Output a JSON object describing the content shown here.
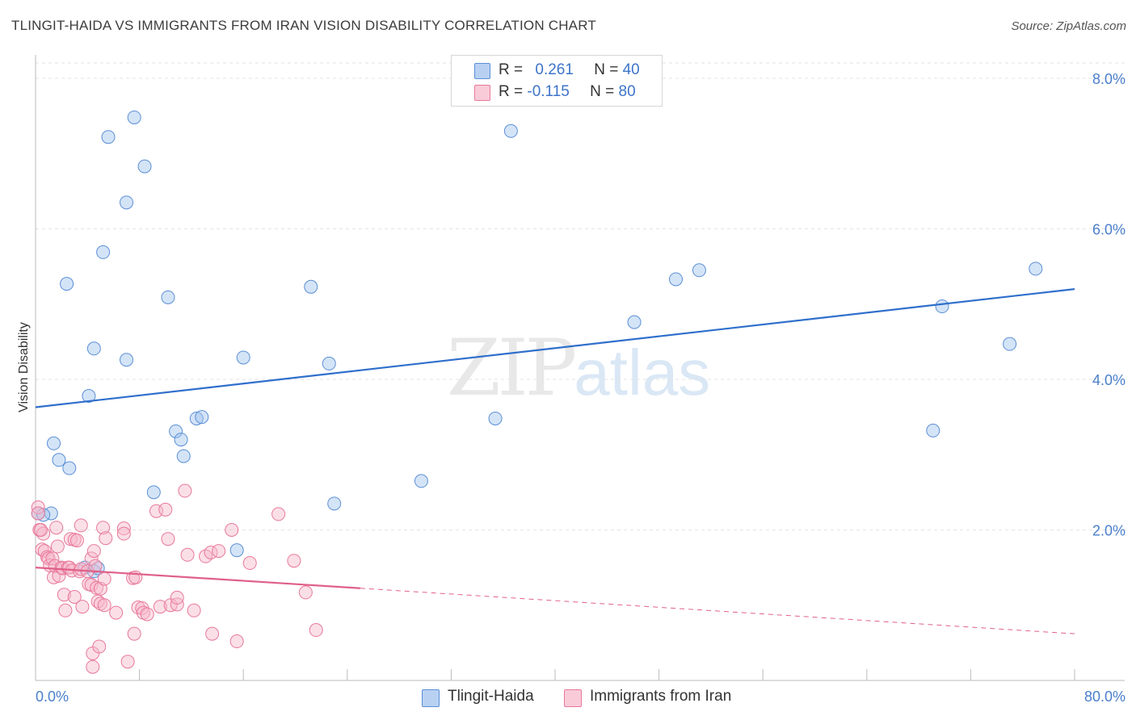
{
  "title": "TLINGIT-HAIDA VS IMMIGRANTS FROM IRAN VISION DISABILITY CORRELATION CHART",
  "source": "Source: ZipAtlas.com",
  "watermark": {
    "zip": "ZIP",
    "atlas": "atlas"
  },
  "legend_top": {
    "rows": [
      {
        "r_label": "R = ",
        "r_value": "0.261",
        "n_label": "N = ",
        "n_value": "40",
        "color": "#9fc2ee",
        "border": "#5b8fd6"
      },
      {
        "r_label": "R = ",
        "r_value": "-0.115",
        "n_label": "N = ",
        "n_value": "80",
        "color": "#f7b8ca",
        "border": "#e8799b"
      }
    ]
  },
  "legend_bottom": [
    {
      "label": "Tlingit-Haida",
      "color": "#b8d1f3",
      "border": "#5b8fd6"
    },
    {
      "label": "Immigrants from Iran",
      "color": "#f9cbd8",
      "border": "#e8799b"
    }
  ],
  "chart_data": {
    "type": "scatter",
    "title": "TLINGIT-HAIDA VS IMMIGRANTS FROM IRAN VISION DISABILITY CORRELATION CHART",
    "xlabel": "",
    "ylabel": "Vision Disability",
    "xlim": [
      0,
      80
    ],
    "ylim": [
      0,
      8.0
    ],
    "x_tick_labels": [
      {
        "value": 0,
        "label": "0.0%"
      },
      {
        "value": 80,
        "label": "80.0%"
      }
    ],
    "y_tick_labels": [
      {
        "value": 2.0,
        "label": "2.0%"
      },
      {
        "value": 4.0,
        "label": "4.0%"
      },
      {
        "value": 6.0,
        "label": "6.0%"
      },
      {
        "value": 8.0,
        "label": "8.0%"
      }
    ],
    "series": [
      {
        "name": "Tlingit-Haida",
        "color": "#5b8fd6",
        "fill": "rgba(160,195,238,0.45)",
        "trend": {
          "x0": 0,
          "y0": 3.63,
          "x1": 80,
          "y1": 5.2,
          "solid_until": 80,
          "color": "#2f6fcc"
        },
        "points": [
          [
            0.2,
            2.22
          ],
          [
            1.2,
            2.22
          ],
          [
            1.4,
            3.15
          ],
          [
            1.8,
            2.93
          ],
          [
            2.4,
            5.27
          ],
          [
            2.6,
            2.82
          ],
          [
            4.1,
            3.78
          ],
          [
            4.5,
            4.41
          ],
          [
            5.2,
            5.69
          ],
          [
            5.6,
            7.22
          ],
          [
            7.0,
            6.35
          ],
          [
            7.0,
            4.26
          ],
          [
            7.6,
            7.48
          ],
          [
            8.4,
            6.83
          ],
          [
            9.1,
            2.5
          ],
          [
            10.2,
            5.09
          ],
          [
            10.8,
            3.31
          ],
          [
            11.2,
            3.2
          ],
          [
            11.4,
            2.98
          ],
          [
            12.4,
            3.48
          ],
          [
            12.8,
            3.5
          ],
          [
            15.5,
            1.73
          ],
          [
            16.0,
            4.29
          ],
          [
            21.2,
            5.23
          ],
          [
            23.0,
            2.35
          ],
          [
            22.6,
            4.21
          ],
          [
            29.7,
            2.65
          ],
          [
            35.4,
            3.48
          ],
          [
            36.6,
            7.3
          ],
          [
            46.1,
            4.76
          ],
          [
            49.3,
            5.33
          ],
          [
            51.1,
            5.45
          ],
          [
            69.1,
            3.32
          ],
          [
            69.8,
            4.97
          ],
          [
            75.0,
            4.47
          ],
          [
            77.0,
            5.47
          ],
          [
            3.8,
            1.5
          ],
          [
            4.5,
            1.45
          ],
          [
            4.8,
            1.49
          ],
          [
            0.6,
            2.2
          ]
        ]
      },
      {
        "name": "Immigrants from Iran",
        "color": "#e8799b",
        "fill": "rgba(247,184,202,0.45)",
        "trend": {
          "x0": 0,
          "y0": 1.5,
          "x1": 80,
          "y1": 0.62,
          "solid_until": 25,
          "color": "#e0608a"
        },
        "points": [
          [
            0.2,
            2.3
          ],
          [
            0.3,
            2.0
          ],
          [
            0.5,
            1.74
          ],
          [
            0.6,
            1.95
          ],
          [
            0.7,
            1.72
          ],
          [
            0.9,
            1.64
          ],
          [
            1.0,
            1.62
          ],
          [
            1.1,
            1.53
          ],
          [
            1.3,
            1.62
          ],
          [
            1.4,
            1.37
          ],
          [
            1.5,
            1.52
          ],
          [
            1.6,
            2.03
          ],
          [
            1.7,
            1.78
          ],
          [
            1.8,
            1.39
          ],
          [
            2.0,
            1.5
          ],
          [
            2.1,
            1.49
          ],
          [
            2.2,
            1.14
          ],
          [
            2.3,
            0.93
          ],
          [
            2.5,
            1.5
          ],
          [
            2.6,
            1.5
          ],
          [
            2.7,
            1.88
          ],
          [
            2.8,
            1.46
          ],
          [
            3.0,
            1.11
          ],
          [
            3.0,
            1.87
          ],
          [
            3.2,
            1.86
          ],
          [
            3.4,
            1.45
          ],
          [
            3.5,
            1.48
          ],
          [
            3.5,
            2.06
          ],
          [
            3.6,
            0.98
          ],
          [
            4.0,
            1.45
          ],
          [
            4.1,
            1.28
          ],
          [
            4.3,
            1.62
          ],
          [
            4.3,
            1.27
          ],
          [
            4.4,
            0.36
          ],
          [
            4.4,
            0.18
          ],
          [
            4.5,
            1.72
          ],
          [
            4.6,
            1.52
          ],
          [
            4.7,
            1.23
          ],
          [
            4.8,
            1.05
          ],
          [
            4.9,
            0.45
          ],
          [
            5.0,
            1.22
          ],
          [
            5.0,
            1.02
          ],
          [
            5.2,
            2.03
          ],
          [
            5.3,
            1.35
          ],
          [
            5.3,
            1.0
          ],
          [
            5.4,
            1.89
          ],
          [
            6.2,
            0.9
          ],
          [
            6.8,
            2.02
          ],
          [
            6.8,
            1.95
          ],
          [
            7.1,
            0.25
          ],
          [
            7.5,
            1.36
          ],
          [
            7.7,
            1.37
          ],
          [
            7.6,
            0.62
          ],
          [
            7.9,
            0.97
          ],
          [
            8.2,
            0.96
          ],
          [
            8.3,
            0.9
          ],
          [
            8.6,
            0.88
          ],
          [
            9.3,
            2.25
          ],
          [
            9.6,
            0.98
          ],
          [
            10.0,
            2.27
          ],
          [
            10.2,
            1.88
          ],
          [
            10.4,
            1.0
          ],
          [
            10.9,
            1.01
          ],
          [
            10.9,
            1.1
          ],
          [
            11.5,
            2.52
          ],
          [
            11.7,
            1.67
          ],
          [
            12.2,
            0.93
          ],
          [
            13.1,
            1.65
          ],
          [
            13.5,
            1.7
          ],
          [
            13.6,
            0.62
          ],
          [
            14.1,
            1.72
          ],
          [
            15.1,
            2.0
          ],
          [
            15.5,
            0.52
          ],
          [
            16.5,
            1.56
          ],
          [
            18.7,
            2.21
          ],
          [
            19.9,
            1.59
          ],
          [
            20.8,
            1.17
          ],
          [
            21.6,
            0.67
          ],
          [
            0.4,
            2.0
          ],
          [
            0.2,
            2.22
          ]
        ]
      }
    ]
  }
}
